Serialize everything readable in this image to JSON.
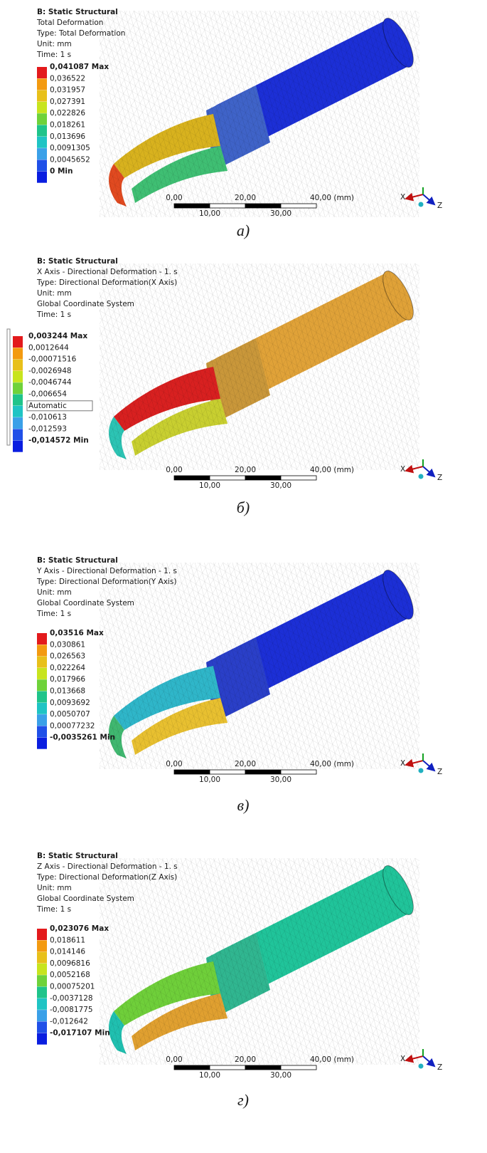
{
  "panels": [
    {
      "header": [
        "B: Static Structural",
        "Total Deformation",
        "Type: Total Deformation",
        "Unit: mm",
        "Time: 1 s"
      ],
      "legend": [
        "0,041087 Max",
        "0,036522",
        "0,031957",
        "0,027391",
        "0,022826",
        "0,018261",
        "0,013696",
        "0,0091305",
        "0,0045652",
        "0 Min"
      ],
      "scale_top": [
        "0,00",
        "20,00",
        "40,00 (mm)"
      ],
      "scale_bottom": [
        "10,00",
        "30,00"
      ],
      "triad": [
        "X",
        "Z"
      ],
      "caption": "а)"
    },
    {
      "header": [
        "B: Static Structural",
        "X Axis - Directional Deformation - 1. s",
        "Type: Directional Deformation(X Axis)",
        "Unit: mm",
        "Global Coordinate System",
        "Time: 1 s"
      ],
      "legend": [
        "0,003244 Max",
        "0,0012644",
        "-0,00071516",
        "-0,0026948",
        "-0,0046744",
        "-0,006654",
        "Automatic",
        "-0,010613",
        "-0,012593",
        "-0,014572 Min"
      ],
      "scale_top": [
        "0,00",
        "20,00",
        "40,00 (mm)"
      ],
      "scale_bottom": [
        "10,00",
        "30,00"
      ],
      "triad": [
        "X",
        "Z"
      ],
      "caption": "б)"
    },
    {
      "header": [
        "B: Static Structural",
        "Y Axis - Directional Deformation - 1. s",
        "Type: Directional Deformation(Y Axis)",
        "Unit: mm",
        "Global Coordinate System",
        "Time: 1 s"
      ],
      "legend": [
        "0,03516 Max",
        "0,030861",
        "0,026563",
        "0,022264",
        "0,017966",
        "0,013668",
        "0,0093692",
        "0,0050707",
        "0,00077232",
        "-0,0035261 Min"
      ],
      "scale_top": [
        "0,00",
        "20,00",
        "40,00 (mm)"
      ],
      "scale_bottom": [
        "10,00",
        "30,00"
      ],
      "triad": [
        "X",
        "Z"
      ],
      "caption": "в)"
    },
    {
      "header": [
        "B: Static Structural",
        "Z Axis - Directional Deformation - 1. s",
        "Type: Directional Deformation(Z Axis)",
        "Unit: mm",
        "Global Coordinate System",
        "Time: 1 s"
      ],
      "legend": [
        "0,023076 Max",
        "0,018611",
        "0,014146",
        "0,0096816",
        "0,0052168",
        "0,00075201",
        "-0,0037128",
        "-0,0081775",
        "-0,012642",
        "-0,017107 Min"
      ],
      "scale_top": [
        "0,00",
        "20,00",
        "40,00 (mm)"
      ],
      "scale_bottom": [
        "10,00",
        "30,00"
      ],
      "triad": [
        "X",
        "Z"
      ],
      "caption": "г)"
    }
  ]
}
